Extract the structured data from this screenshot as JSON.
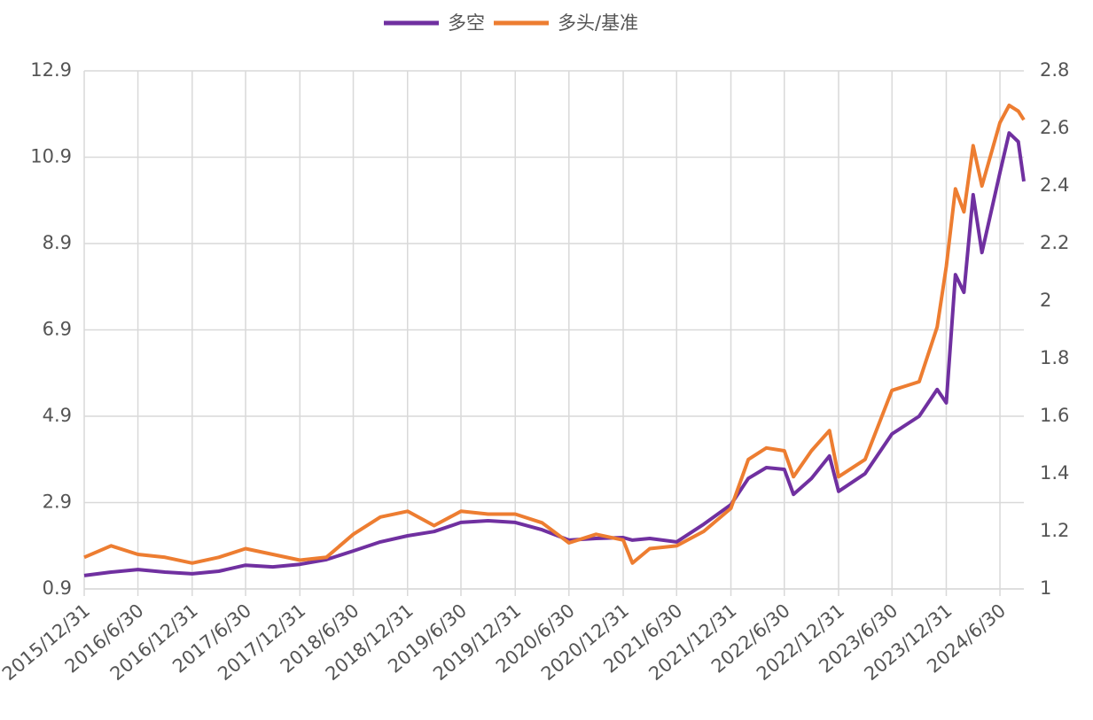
{
  "chart_data": {
    "type": "line",
    "x": [
      "2015/12/31",
      "2016/3/31",
      "2016/6/30",
      "2016/9/30",
      "2016/12/31",
      "2017/3/31",
      "2017/6/30",
      "2017/9/30",
      "2017/12/31",
      "2018/3/31",
      "2018/6/30",
      "2018/9/30",
      "2018/12/31",
      "2019/3/31",
      "2019/6/30",
      "2019/9/30",
      "2019/12/31",
      "2020/3/31",
      "2020/6/30",
      "2020/9/30",
      "2020/12/31",
      "2021/1/31",
      "2021/3/31",
      "2021/6/30",
      "2021/9/30",
      "2021/12/31",
      "2022/2/28",
      "2022/4/30",
      "2022/6/30",
      "2022/7/31",
      "2022/9/30",
      "2022/11/30",
      "2022/12/31",
      "2023/3/31",
      "2023/6/30",
      "2023/9/30",
      "2023/11/30",
      "2023/12/31",
      "2024/1/31",
      "2024/2/29",
      "2024/3/31",
      "2024/4/30",
      "2024/6/30",
      "2024/7/31",
      "2024/8/31",
      "2024/9/19"
    ],
    "xlim": [
      "2015/12/31",
      "2024/9/19"
    ],
    "xticks": [
      "2015/12/31",
      "2016/6/30",
      "2016/12/31",
      "2017/6/30",
      "2017/12/31",
      "2018/6/30",
      "2018/12/31",
      "2019/6/30",
      "2019/12/31",
      "2020/6/30",
      "2020/12/31",
      "2021/6/30",
      "2021/12/31",
      "2022/6/30",
      "2022/12/31",
      "2023/6/30",
      "2023/12/31",
      "2024/6/30"
    ],
    "ylim": [
      0.9,
      12.9
    ],
    "yticks": [
      0.9,
      2.9,
      4.9,
      6.9,
      8.9,
      10.9,
      12.9
    ],
    "y2lim": [
      1,
      2.8
    ],
    "y2ticks": [
      1,
      1.2,
      1.4,
      1.6,
      1.8,
      2,
      2.2,
      2.4,
      2.6,
      2.8
    ],
    "grid": true,
    "legend": "top",
    "series": [
      {
        "name": "多空",
        "color": "#7030a0",
        "values": [
          1.21,
          1.29,
          1.35,
          1.29,
          1.25,
          1.31,
          1.45,
          1.41,
          1.47,
          1.58,
          1.78,
          1.99,
          2.13,
          2.23,
          2.44,
          2.48,
          2.44,
          2.27,
          2.03,
          2.07,
          2.09,
          2.03,
          2.07,
          1.99,
          2.4,
          2.85,
          3.46,
          3.71,
          3.67,
          3.09,
          3.46,
          3.98,
          3.16,
          3.57,
          4.49,
          4.9,
          5.52,
          5.21,
          8.18,
          7.77,
          10.03,
          8.69,
          10.54,
          11.46,
          11.26,
          10.34
        ]
      },
      {
        "name": "多头/基准",
        "color": "#ed7d31",
        "axis": "y2",
        "values": [
          1.11,
          1.15,
          1.12,
          1.11,
          1.09,
          1.11,
          1.14,
          1.12,
          1.1,
          1.11,
          1.19,
          1.25,
          1.27,
          1.22,
          1.27,
          1.26,
          1.26,
          1.23,
          1.16,
          1.19,
          1.17,
          1.09,
          1.14,
          1.15,
          1.2,
          1.28,
          1.45,
          1.49,
          1.48,
          1.39,
          1.48,
          1.55,
          1.39,
          1.45,
          1.69,
          1.72,
          1.91,
          2.12,
          2.39,
          2.31,
          2.54,
          2.4,
          2.62,
          2.68,
          2.66,
          2.63
        ]
      }
    ]
  }
}
